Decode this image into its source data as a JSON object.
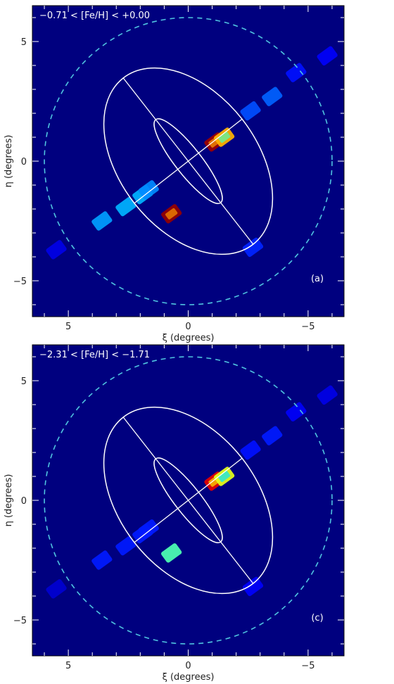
{
  "chart_data": [
    {
      "type": "heatmap",
      "panel_label": "(a)",
      "range_label": "−0.71 < [Fe/H] < +0.00",
      "xlabel": "ξ (degrees)",
      "ylabel": "η (degrees)",
      "xlim": [
        6.5,
        -6.5
      ],
      "ylim": [
        -6.5,
        6.5
      ],
      "x_ticks": [
        5,
        0,
        -5
      ],
      "x_tick_labels": [
        "5",
        "0",
        "−5"
      ],
      "y_ticks": [
        5,
        0,
        -5
      ],
      "y_tick_labels": [
        "5",
        "0",
        "−5"
      ],
      "grid": false,
      "colormap": "jet",
      "background_color": "#00007f",
      "fields": [
        {
          "xi": 5.5,
          "eta": -3.7,
          "level": 0.1
        },
        {
          "xi": 3.6,
          "eta": -2.5,
          "level": 0.28
        },
        {
          "xi": 2.6,
          "eta": -1.9,
          "level": 0.3
        },
        {
          "xi": 1.9,
          "eta": -1.4,
          "level": 0.3
        },
        {
          "xi": 1.65,
          "eta": -1.2,
          "level": 0.26
        },
        {
          "xi": 0.7,
          "eta": -2.2,
          "level": 0.98
        },
        {
          "xi": -1.1,
          "eta": 0.8,
          "level": 0.97
        },
        {
          "xi": -1.5,
          "eta": 1.0,
          "level": 0.7
        },
        {
          "xi": -2.7,
          "eta": -3.6,
          "level": 0.16
        },
        {
          "xi": -2.6,
          "eta": 2.1,
          "level": 0.2
        },
        {
          "xi": -3.5,
          "eta": 2.7,
          "level": 0.22
        },
        {
          "xi": -4.5,
          "eta": 3.7,
          "level": 0.14
        },
        {
          "xi": -5.8,
          "eta": 4.4,
          "level": 0.12
        }
      ],
      "overlays": {
        "outer_ellipse": {
          "center": [
            0,
            0
          ],
          "semi_major_deg": 4.4,
          "semi_minor_deg": 2.85,
          "pa_deg": 38
        },
        "inner_ellipse": {
          "center": [
            0,
            0
          ],
          "semi_major_deg": 2.2,
          "semi_minor_deg": 0.55,
          "pa_deg": 38
        },
        "dashed_circle": {
          "center": [
            0,
            0
          ],
          "radius_deg": 6.0,
          "color": "#4fc3e0"
        }
      }
    },
    {
      "type": "heatmap",
      "panel_label": "(c)",
      "range_label": "−2.31 < [Fe/H] < −1.71",
      "xlabel": "ξ (degrees)",
      "ylabel": "η (degrees)",
      "xlim": [
        6.5,
        -6.5
      ],
      "ylim": [
        -6.5,
        6.5
      ],
      "x_ticks": [
        5,
        0,
        -5
      ],
      "x_tick_labels": [
        "5",
        "0",
        "−5"
      ],
      "y_ticks": [
        5,
        0,
        -5
      ],
      "y_tick_labels": [
        "5",
        "0",
        "−5"
      ],
      "grid": false,
      "colormap": "jet",
      "background_color": "#00007f",
      "fields": [
        {
          "xi": 5.5,
          "eta": -3.7,
          "level": 0.08
        },
        {
          "xi": 3.6,
          "eta": -2.5,
          "level": 0.15
        },
        {
          "xi": 2.6,
          "eta": -1.9,
          "level": 0.15
        },
        {
          "xi": 1.9,
          "eta": -1.4,
          "level": 0.15
        },
        {
          "xi": 1.65,
          "eta": -1.2,
          "level": 0.15
        },
        {
          "xi": 0.7,
          "eta": -2.2,
          "level": 0.45
        },
        {
          "xi": -1.1,
          "eta": 0.8,
          "level": 0.9
        },
        {
          "xi": -1.5,
          "eta": 1.0,
          "level": 0.6
        },
        {
          "xi": -2.7,
          "eta": -3.6,
          "level": 0.12
        },
        {
          "xi": -2.6,
          "eta": 2.1,
          "level": 0.14
        },
        {
          "xi": -3.5,
          "eta": 2.7,
          "level": 0.15
        },
        {
          "xi": -4.5,
          "eta": 3.7,
          "level": 0.12
        },
        {
          "xi": -5.8,
          "eta": 4.4,
          "level": 0.1
        }
      ],
      "overlays": {
        "outer_ellipse": {
          "center": [
            0,
            0
          ],
          "semi_major_deg": 4.4,
          "semi_minor_deg": 2.85,
          "pa_deg": 38
        },
        "inner_ellipse": {
          "center": [
            0,
            0
          ],
          "semi_major_deg": 2.2,
          "semi_minor_deg": 0.55,
          "pa_deg": 38
        },
        "dashed_circle": {
          "center": [
            0,
            0
          ],
          "radius_deg": 6.0,
          "color": "#4fc3e0"
        }
      }
    }
  ]
}
